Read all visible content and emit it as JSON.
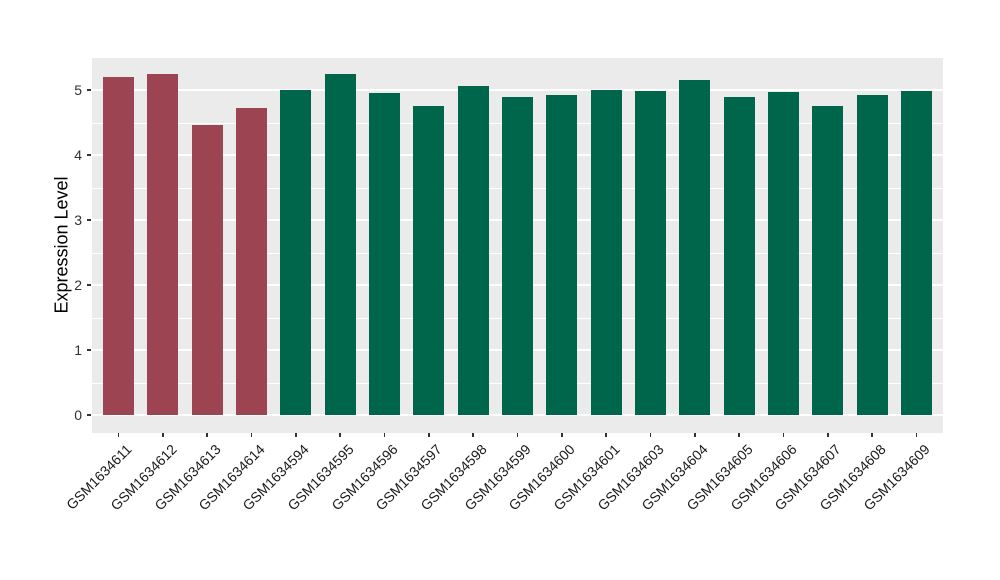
{
  "chart_data": {
    "type": "bar",
    "title": "",
    "xlabel": "",
    "ylabel": "Expression Level",
    "categories": [
      "GSM1634611",
      "GSM1634612",
      "GSM1634613",
      "GSM1634614",
      "GSM1634594",
      "GSM1634595",
      "GSM1634596",
      "GSM1634597",
      "GSM1634598",
      "GSM1634599",
      "GSM1634600",
      "GSM1634601",
      "GSM1634603",
      "GSM1634604",
      "GSM1634605",
      "GSM1634606",
      "GSM1634607",
      "GSM1634608",
      "GSM1634609"
    ],
    "values": [
      5.2,
      5.25,
      4.46,
      4.72,
      5.0,
      5.25,
      4.96,
      4.76,
      5.06,
      4.9,
      4.93,
      5.0,
      4.99,
      5.16,
      4.89,
      4.97,
      4.76,
      4.93,
      4.99
    ],
    "bar_colors": [
      "#9C4451",
      "#9C4451",
      "#9C4451",
      "#9C4451",
      "#00664B",
      "#00664B",
      "#00664B",
      "#00664B",
      "#00664B",
      "#00664B",
      "#00664B",
      "#00664B",
      "#00664B",
      "#00664B",
      "#00664B",
      "#00664B",
      "#00664B",
      "#00664B",
      "#00664B"
    ],
    "yticks": [
      0,
      1,
      2,
      3,
      4,
      5
    ],
    "minor_yticks": [
      0.5,
      1.5,
      2.5,
      3.5,
      4.5
    ],
    "ylim": [
      -0.28,
      5.49
    ],
    "grid": "major and minor horizontal white gridlines on gray panel",
    "legend": "none"
  },
  "colors": {
    "group_red": "#9C4451",
    "group_green": "#00664B",
    "panel_bg": "#EBEBEB",
    "grid": "#FFFFFF",
    "axis_text": "#303030",
    "axis_title": "#000000",
    "figure_bg": "#FFFFFF"
  }
}
